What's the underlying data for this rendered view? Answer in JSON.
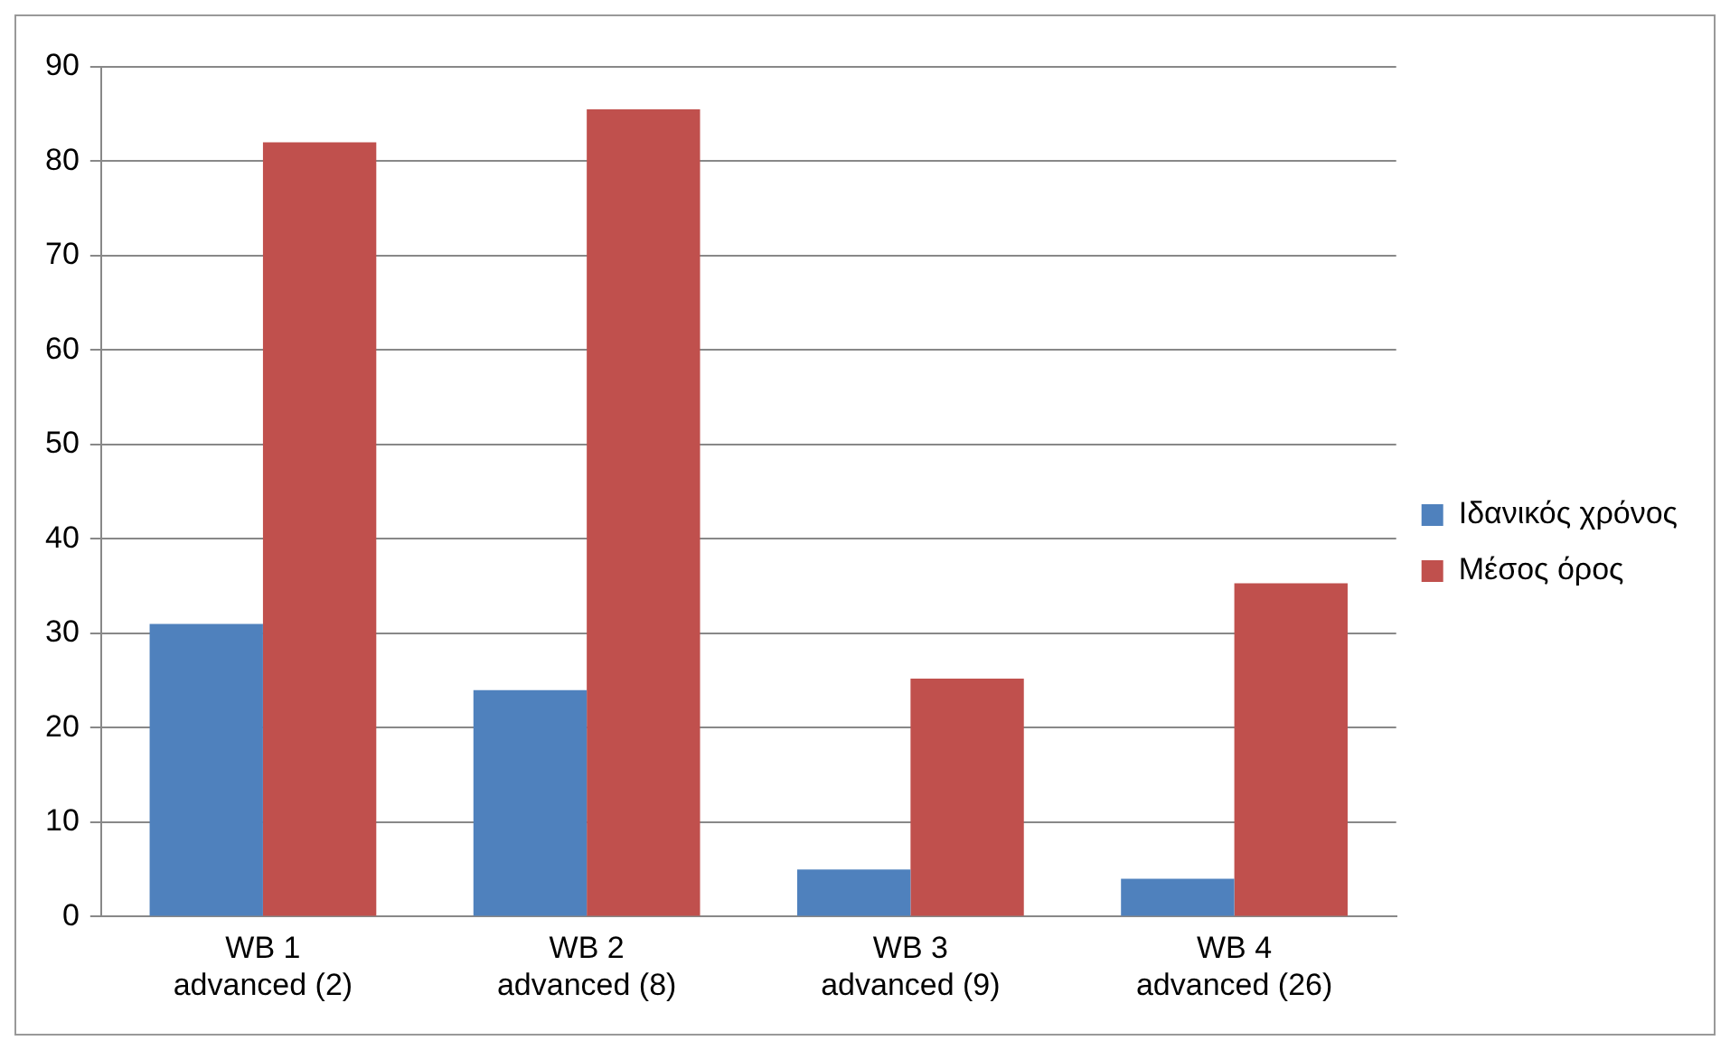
{
  "chart_data": {
    "type": "bar",
    "categories": [
      "WB 1 advanced (2)",
      "WB 2 advanced (8)",
      "WB 3 advanced (9)",
      "WB 4 advanced (26)"
    ],
    "series": [
      {
        "name": "Ιδανικός χρόνος",
        "color": "#4f81bd",
        "values": [
          31,
          24,
          5,
          4
        ]
      },
      {
        "name": "Μέσος όρος",
        "color": "#c0504d",
        "values": [
          82,
          85.5,
          25.2,
          35.3
        ]
      }
    ],
    "ylim": [
      0,
      90
    ],
    "yticks": [
      0,
      10,
      20,
      30,
      40,
      50,
      60,
      70,
      80,
      90
    ],
    "grid": "y",
    "legend": "right"
  }
}
